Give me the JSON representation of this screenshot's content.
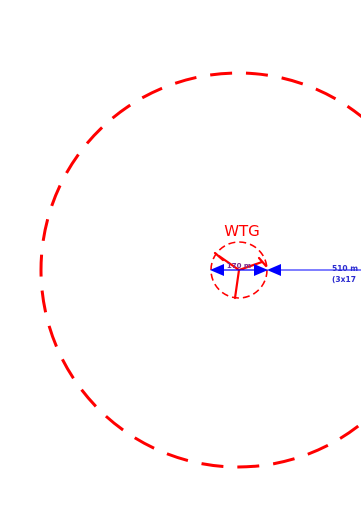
{
  "drawing": {
    "wtg_label": "WTG",
    "outer_radius_label_line1": "510 m",
    "outer_radius_label_line2": "(3x17",
    "rotor_diameter_label": "170 m",
    "colors": {
      "boundary": "#ff0000",
      "dimension": "#0000ff",
      "dimension_text": "#2b2bcf",
      "inner_text": "#7a2b8f",
      "background": "#ffffff"
    }
  }
}
